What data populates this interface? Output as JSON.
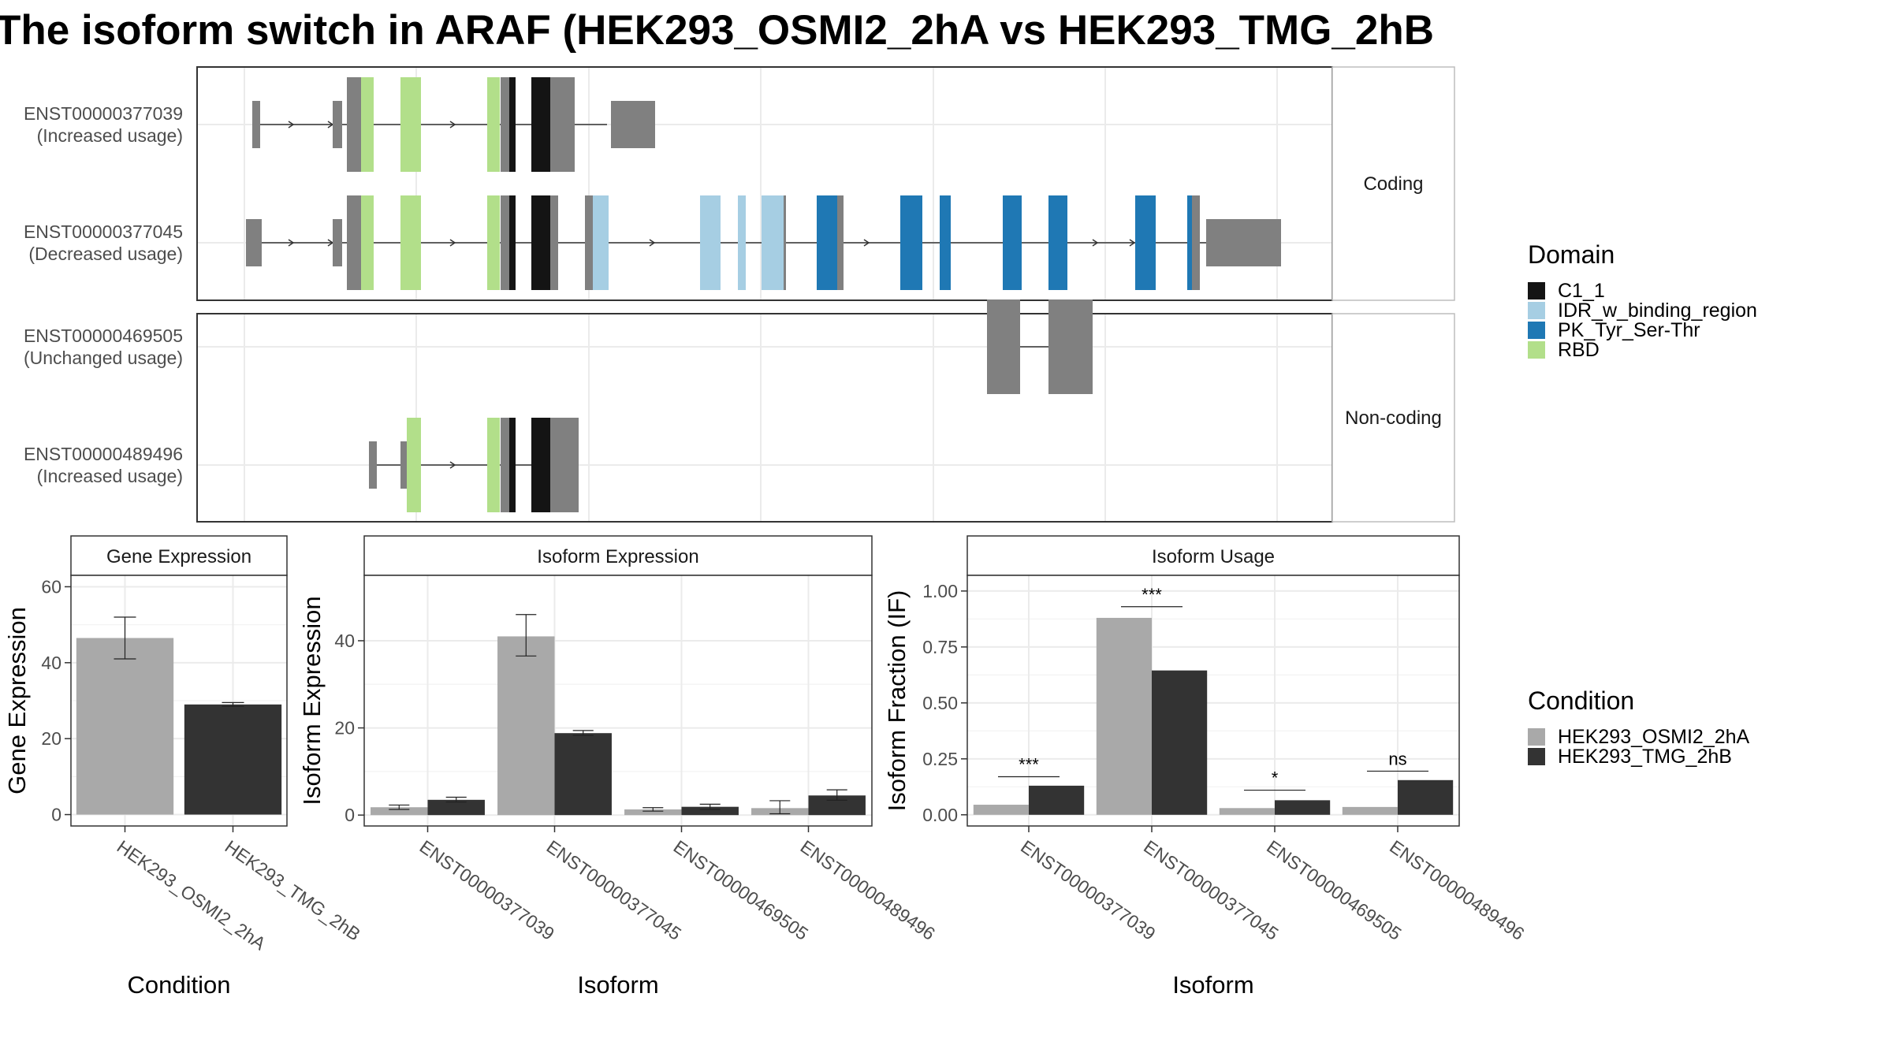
{
  "title": "The isoform switch in ARAF (HEK293_OSMI2_2hA vs HEK293_TMG_2hB",
  "colors": {
    "C1_1": "#141414",
    "IDR_w_binding_region": "#a6cee3",
    "PK_Tyr_Ser-Thr": "#1f78b4",
    "RBD": "#b2df8a",
    "exon": "#808080",
    "cond1": "#a9a9a9",
    "cond2": "#333333"
  },
  "structure": {
    "facets": [
      "Coding",
      "Non-coding"
    ],
    "isoforms": [
      {
        "id": "ENST00000377039",
        "usage": "(Increased usage)",
        "facet": 0
      },
      {
        "id": "ENST00000377045",
        "usage": "(Decreased usage)",
        "facet": 0
      },
      {
        "id": "ENST00000469505",
        "usage": "(Unchanged usage)",
        "facet": 1
      },
      {
        "id": "ENST00000489496",
        "usage": "(Increased usage)",
        "facet": 1
      }
    ]
  },
  "legend": {
    "domain_title": "Domain",
    "domain_items": [
      {
        "label": "C1_1",
        "color": "#141414"
      },
      {
        "label": "IDR_w_binding_region",
        "color": "#a6cee3"
      },
      {
        "label": "PK_Tyr_Ser-Thr",
        "color": "#1f78b4"
      },
      {
        "label": "RBD",
        "color": "#b2df8a"
      }
    ],
    "condition_title": "Condition",
    "condition_items": [
      {
        "label": "HEK293_OSMI2_2hA",
        "color": "#a9a9a9"
      },
      {
        "label": "HEK293_TMG_2hB",
        "color": "#333333"
      }
    ]
  },
  "chart_data": [
    {
      "type": "bar",
      "title": "Gene Expression",
      "xlabel": "Condition",
      "ylabel": "Gene Expression",
      "categories": [
        "HEK293_OSMI2_2hA",
        "HEK293_TMG_2hB"
      ],
      "values": [
        46.5,
        29
      ],
      "error": [
        [
          41,
          52
        ],
        [
          28.5,
          29.5
        ]
      ],
      "ylim": [
        -3,
        63
      ],
      "yticks": [
        0,
        20,
        40,
        60
      ]
    },
    {
      "type": "bar",
      "title": "Isoform Expression",
      "xlabel": "Isoform",
      "ylabel": "Isoform Expression",
      "categories": [
        "ENST00000377039",
        "ENST00000377045",
        "ENST00000469505",
        "ENST00000489496"
      ],
      "series": [
        {
          "name": "HEK293_OSMI2_2hA",
          "values": [
            1.8,
            41,
            1.3,
            1.6
          ],
          "error": [
            [
              1.3,
              2.3
            ],
            [
              36.5,
              46
            ],
            [
              0.9,
              1.7
            ],
            [
              0.3,
              3.3
            ]
          ]
        },
        {
          "name": "HEK293_TMG_2hB",
          "values": [
            3.5,
            18.8,
            1.9,
            4.5
          ],
          "error": [
            [
              3,
              4.1
            ],
            [
              18.3,
              19.4
            ],
            [
              1.3,
              2.5
            ],
            [
              3.4,
              5.8
            ]
          ]
        }
      ],
      "ylim": [
        -2.5,
        55
      ],
      "yticks": [
        0,
        20,
        40
      ]
    },
    {
      "type": "bar",
      "title": "Isoform Usage",
      "xlabel": "Isoform",
      "ylabel": "Isoform Fraction (IF)",
      "categories": [
        "ENST00000377039",
        "ENST00000377045",
        "ENST00000469505",
        "ENST00000489496"
      ],
      "series": [
        {
          "name": "HEK293_OSMI2_2hA",
          "values": [
            0.045,
            0.88,
            0.03,
            0.035
          ]
        },
        {
          "name": "HEK293_TMG_2hB",
          "values": [
            0.13,
            0.645,
            0.065,
            0.155
          ]
        }
      ],
      "significance": [
        "***",
        "***",
        "*",
        "ns"
      ],
      "sig_y": [
        0.17,
        0.93,
        0.11,
        0.195
      ],
      "ylim": [
        -0.05,
        1.07
      ],
      "yticks": [
        0.0,
        0.25,
        0.5,
        0.75,
        1.0
      ],
      "yticklabels": [
        "0.00",
        "0.25",
        "0.50",
        "0.75",
        "1.00"
      ]
    }
  ]
}
